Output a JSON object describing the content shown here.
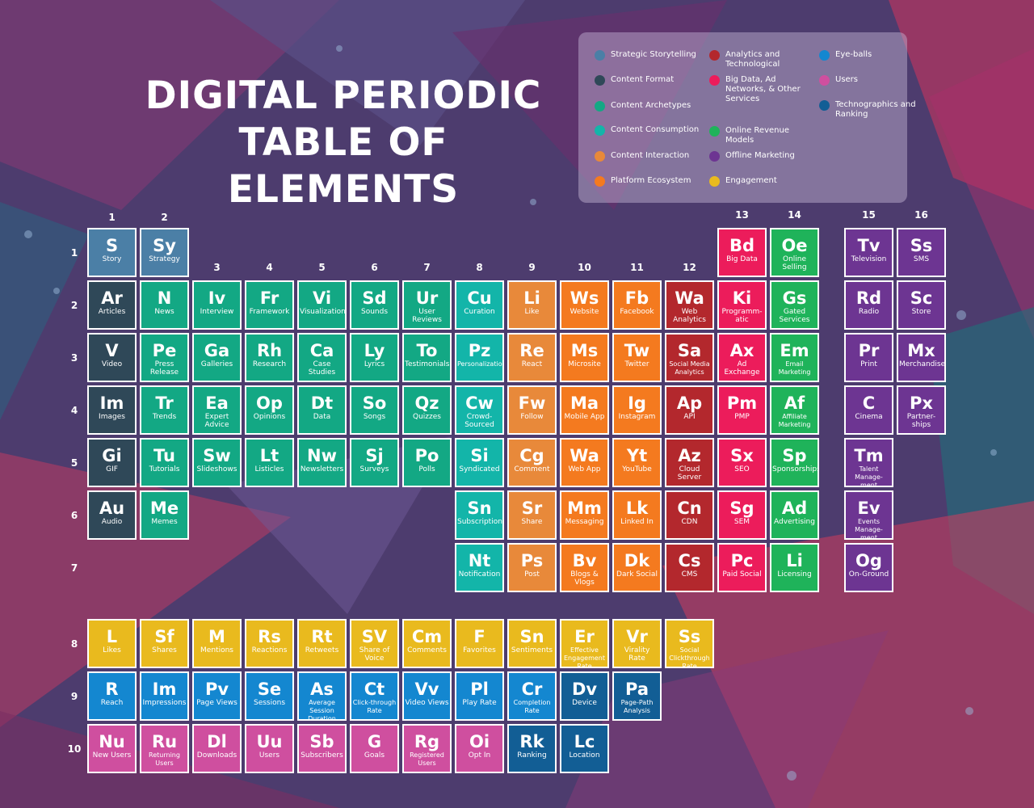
{
  "title": [
    "DIGITAL PERIODIC",
    "TABLE OF ELEMENTS"
  ],
  "colors": {
    "strategic": "#4b7fa6",
    "format": "#2f4858",
    "archetypes": "#13a884",
    "consumption": "#13b5a9",
    "interaction": "#e8893a",
    "platform": "#f47a1f",
    "analytics": "#b3282d",
    "bigdata": "#ec1c5b",
    "revenue": "#1fb35a",
    "offline": "#6d3592",
    "engagement": "#e9ba1e",
    "eyeballs": "#1487d0",
    "users": "#cf4f9f",
    "technographics": "#125e95"
  },
  "legend": [
    {
      "key": "strategic",
      "label": "Strategic Storytelling"
    },
    {
      "key": "format",
      "label": "Content Format"
    },
    {
      "key": "archetypes",
      "label": "Content Archetypes"
    },
    {
      "key": "consumption",
      "label": "Content Consumption"
    },
    {
      "key": "interaction",
      "label": "Content Interaction"
    },
    {
      "key": "platform",
      "label": "Platform Ecosystem"
    },
    {
      "key": "analytics",
      "label": "Analytics and Technological"
    },
    {
      "key": "bigdata",
      "label": "Big Data, Ad Networks, & Other Services"
    },
    {
      "key": "revenue",
      "label": "Online Revenue Models"
    },
    {
      "key": "offline",
      "label": "Offline Marketing"
    },
    {
      "key": "engagement",
      "label": "Engagement"
    },
    {
      "key": "eyeballs",
      "label": "Eye-balls"
    },
    {
      "key": "users",
      "label": "Users"
    },
    {
      "key": "technographics",
      "label": "Technographics and Ranking"
    }
  ],
  "column_labels": [
    "1",
    "2",
    "3",
    "4",
    "5",
    "6",
    "7",
    "8",
    "9",
    "10",
    "11",
    "12",
    "13",
    "14",
    "15",
    "16"
  ],
  "row_labels": [
    "1",
    "2",
    "3",
    "4",
    "5",
    "6",
    "7",
    "8",
    "9",
    "10"
  ],
  "elements": [
    {
      "col": 1,
      "row": 1,
      "sym": "S",
      "name": "Story",
      "cat": "strategic"
    },
    {
      "col": 2,
      "row": 1,
      "sym": "Sy",
      "name": "Strategy",
      "cat": "strategic"
    },
    {
      "col": 13,
      "row": 1,
      "sym": "Bd",
      "name": "Big Data",
      "cat": "bigdata"
    },
    {
      "col": 14,
      "row": 1,
      "sym": "Oe",
      "name": "Online Selling",
      "cat": "revenue"
    },
    {
      "col": 15,
      "row": 1,
      "sym": "Tv",
      "name": "Television",
      "cat": "offline"
    },
    {
      "col": 16,
      "row": 1,
      "sym": "Ss",
      "name": "SMS",
      "cat": "offline"
    },
    {
      "col": 1,
      "row": 2,
      "sym": "Ar",
      "name": "Articles",
      "cat": "format"
    },
    {
      "col": 2,
      "row": 2,
      "sym": "N",
      "name": "News",
      "cat": "archetypes"
    },
    {
      "col": 3,
      "row": 2,
      "sym": "Iv",
      "name": "Interview",
      "cat": "archetypes"
    },
    {
      "col": 4,
      "row": 2,
      "sym": "Fr",
      "name": "Framework",
      "cat": "archetypes"
    },
    {
      "col": 5,
      "row": 2,
      "sym": "Vi",
      "name": "Visualization",
      "cat": "archetypes"
    },
    {
      "col": 6,
      "row": 2,
      "sym": "Sd",
      "name": "Sounds",
      "cat": "archetypes"
    },
    {
      "col": 7,
      "row": 2,
      "sym": "Ur",
      "name": "User Reviews",
      "cat": "archetypes"
    },
    {
      "col": 8,
      "row": 2,
      "sym": "Cu",
      "name": "Curation",
      "cat": "consumption"
    },
    {
      "col": 9,
      "row": 2,
      "sym": "Li",
      "name": "Like",
      "cat": "interaction"
    },
    {
      "col": 10,
      "row": 2,
      "sym": "Ws",
      "name": "Website",
      "cat": "platform"
    },
    {
      "col": 11,
      "row": 2,
      "sym": "Fb",
      "name": "Facebook",
      "cat": "platform"
    },
    {
      "col": 12,
      "row": 2,
      "sym": "Wa",
      "name": "Web Analytics",
      "cat": "analytics"
    },
    {
      "col": 13,
      "row": 2,
      "sym": "Ki",
      "name": "Programm-atic",
      "cat": "bigdata"
    },
    {
      "col": 14,
      "row": 2,
      "sym": "Gs",
      "name": "Gated Services",
      "cat": "revenue"
    },
    {
      "col": 15,
      "row": 2,
      "sym": "Rd",
      "name": "Radio",
      "cat": "offline"
    },
    {
      "col": 16,
      "row": 2,
      "sym": "Sc",
      "name": "Store",
      "cat": "offline"
    },
    {
      "col": 1,
      "row": 3,
      "sym": "V",
      "name": "Video",
      "cat": "format"
    },
    {
      "col": 2,
      "row": 3,
      "sym": "Pe",
      "name": "Press Release",
      "cat": "archetypes"
    },
    {
      "col": 3,
      "row": 3,
      "sym": "Ga",
      "name": "Galleries",
      "cat": "archetypes"
    },
    {
      "col": 4,
      "row": 3,
      "sym": "Rh",
      "name": "Research",
      "cat": "archetypes"
    },
    {
      "col": 5,
      "row": 3,
      "sym": "Ca",
      "name": "Case Studies",
      "cat": "archetypes"
    },
    {
      "col": 6,
      "row": 3,
      "sym": "Ly",
      "name": "Lyrics",
      "cat": "archetypes"
    },
    {
      "col": 7,
      "row": 3,
      "sym": "To",
      "name": "Testimonials",
      "cat": "archetypes"
    },
    {
      "col": 8,
      "row": 3,
      "sym": "Pz",
      "name": "Personalization",
      "cat": "consumption"
    },
    {
      "col": 9,
      "row": 3,
      "sym": "Re",
      "name": "React",
      "cat": "interaction"
    },
    {
      "col": 10,
      "row": 3,
      "sym": "Ms",
      "name": "Microsite",
      "cat": "platform"
    },
    {
      "col": 11,
      "row": 3,
      "sym": "Tw",
      "name": "Twitter",
      "cat": "platform"
    },
    {
      "col": 12,
      "row": 3,
      "sym": "Sa",
      "name": "Social Media Analytics",
      "cat": "analytics"
    },
    {
      "col": 13,
      "row": 3,
      "sym": "Ax",
      "name": "Ad Exchange",
      "cat": "bigdata"
    },
    {
      "col": 14,
      "row": 3,
      "sym": "Em",
      "name": "Email Marketing",
      "cat": "revenue"
    },
    {
      "col": 15,
      "row": 3,
      "sym": "Pr",
      "name": "Print",
      "cat": "offline"
    },
    {
      "col": 16,
      "row": 3,
      "sym": "Mx",
      "name": "Merchandise",
      "cat": "offline"
    },
    {
      "col": 1,
      "row": 4,
      "sym": "Im",
      "name": "Images",
      "cat": "format"
    },
    {
      "col": 2,
      "row": 4,
      "sym": "Tr",
      "name": "Trends",
      "cat": "archetypes"
    },
    {
      "col": 3,
      "row": 4,
      "sym": "Ea",
      "name": "Expert Advice",
      "cat": "archetypes"
    },
    {
      "col": 4,
      "row": 4,
      "sym": "Op",
      "name": "Opinions",
      "cat": "archetypes"
    },
    {
      "col": 5,
      "row": 4,
      "sym": "Dt",
      "name": "Data",
      "cat": "archetypes"
    },
    {
      "col": 6,
      "row": 4,
      "sym": "So",
      "name": "Songs",
      "cat": "archetypes"
    },
    {
      "col": 7,
      "row": 4,
      "sym": "Qz",
      "name": "Quizzes",
      "cat": "archetypes"
    },
    {
      "col": 8,
      "row": 4,
      "sym": "Cw",
      "name": "Crowd-Sourced",
      "cat": "consumption"
    },
    {
      "col": 9,
      "row": 4,
      "sym": "Fw",
      "name": "Follow",
      "cat": "interaction"
    },
    {
      "col": 10,
      "row": 4,
      "sym": "Ma",
      "name": "Mobile App",
      "cat": "platform"
    },
    {
      "col": 11,
      "row": 4,
      "sym": "Ig",
      "name": "Instagram",
      "cat": "platform"
    },
    {
      "col": 12,
      "row": 4,
      "sym": "Ap",
      "name": "API",
      "cat": "analytics"
    },
    {
      "col": 13,
      "row": 4,
      "sym": "Pm",
      "name": "PMP",
      "cat": "bigdata"
    },
    {
      "col": 14,
      "row": 4,
      "sym": "Af",
      "name": "Affiliate Marketing",
      "cat": "revenue"
    },
    {
      "col": 15,
      "row": 4,
      "sym": "C",
      "name": "Cinema",
      "cat": "offline"
    },
    {
      "col": 16,
      "row": 4,
      "sym": "Px",
      "name": "Partner-ships",
      "cat": "offline"
    },
    {
      "col": 1,
      "row": 5,
      "sym": "Gi",
      "name": "GIF",
      "cat": "format"
    },
    {
      "col": 2,
      "row": 5,
      "sym": "Tu",
      "name": "Tutorials",
      "cat": "archetypes"
    },
    {
      "col": 3,
      "row": 5,
      "sym": "Sw",
      "name": "Slideshows",
      "cat": "archetypes"
    },
    {
      "col": 4,
      "row": 5,
      "sym": "Lt",
      "name": "Listicles",
      "cat": "archetypes"
    },
    {
      "col": 5,
      "row": 5,
      "sym": "Nw",
      "name": "Newsletters",
      "cat": "archetypes"
    },
    {
      "col": 6,
      "row": 5,
      "sym": "Sj",
      "name": "Surveys",
      "cat": "archetypes"
    },
    {
      "col": 7,
      "row": 5,
      "sym": "Po",
      "name": "Polls",
      "cat": "archetypes"
    },
    {
      "col": 8,
      "row": 5,
      "sym": "Si",
      "name": "Syndicated",
      "cat": "consumption"
    },
    {
      "col": 9,
      "row": 5,
      "sym": "Cg",
      "name": "Comment",
      "cat": "interaction"
    },
    {
      "col": 10,
      "row": 5,
      "sym": "Wa",
      "name": "Web App",
      "cat": "platform"
    },
    {
      "col": 11,
      "row": 5,
      "sym": "Yt",
      "name": "YouTube",
      "cat": "platform"
    },
    {
      "col": 12,
      "row": 5,
      "sym": "Az",
      "name": "Cloud Server",
      "cat": "analytics"
    },
    {
      "col": 13,
      "row": 5,
      "sym": "Sx",
      "name": "SEO",
      "cat": "bigdata"
    },
    {
      "col": 14,
      "row": 5,
      "sym": "Sp",
      "name": "Sponsorships",
      "cat": "revenue"
    },
    {
      "col": 15,
      "row": 5,
      "sym": "Tm",
      "name": "Talent Manage-ment",
      "cat": "offline"
    },
    {
      "col": 1,
      "row": 6,
      "sym": "Au",
      "name": "Audio",
      "cat": "format"
    },
    {
      "col": 2,
      "row": 6,
      "sym": "Me",
      "name": "Memes",
      "cat": "archetypes"
    },
    {
      "col": 8,
      "row": 6,
      "sym": "Sn",
      "name": "Subscription",
      "cat": "consumption"
    },
    {
      "col": 9,
      "row": 6,
      "sym": "Sr",
      "name": "Share",
      "cat": "interaction"
    },
    {
      "col": 10,
      "row": 6,
      "sym": "Mm",
      "name": "Messaging",
      "cat": "platform"
    },
    {
      "col": 11,
      "row": 6,
      "sym": "Lk",
      "name": "Linked In",
      "cat": "platform"
    },
    {
      "col": 12,
      "row": 6,
      "sym": "Cn",
      "name": "CDN",
      "cat": "analytics"
    },
    {
      "col": 13,
      "row": 6,
      "sym": "Sg",
      "name": "SEM",
      "cat": "bigdata"
    },
    {
      "col": 14,
      "row": 6,
      "sym": "Ad",
      "name": "Advertising",
      "cat": "revenue"
    },
    {
      "col": 15,
      "row": 6,
      "sym": "Ev",
      "name": "Events Manage-ment",
      "cat": "offline"
    },
    {
      "col": 8,
      "row": 7,
      "sym": "Nt",
      "name": "Notification",
      "cat": "consumption"
    },
    {
      "col": 9,
      "row": 7,
      "sym": "Ps",
      "name": "Post",
      "cat": "interaction"
    },
    {
      "col": 10,
      "row": 7,
      "sym": "Bv",
      "name": "Blogs & Vlogs",
      "cat": "platform"
    },
    {
      "col": 11,
      "row": 7,
      "sym": "Dk",
      "name": "Dark Social",
      "cat": "platform"
    },
    {
      "col": 12,
      "row": 7,
      "sym": "Cs",
      "name": "CMS",
      "cat": "analytics"
    },
    {
      "col": 13,
      "row": 7,
      "sym": "Pc",
      "name": "Paid Social",
      "cat": "bigdata"
    },
    {
      "col": 14,
      "row": 7,
      "sym": "Li",
      "name": "Licensing",
      "cat": "revenue"
    },
    {
      "col": 15,
      "row": 7,
      "sym": "Og",
      "name": "On-Ground",
      "cat": "offline"
    },
    {
      "col": 1,
      "row": 8,
      "sym": "L",
      "name": "Likes",
      "cat": "engagement"
    },
    {
      "col": 2,
      "row": 8,
      "sym": "Sf",
      "name": "Shares",
      "cat": "engagement"
    },
    {
      "col": 3,
      "row": 8,
      "sym": "M",
      "name": "Mentions",
      "cat": "engagement"
    },
    {
      "col": 4,
      "row": 8,
      "sym": "Rs",
      "name": "Reactions",
      "cat": "engagement"
    },
    {
      "col": 5,
      "row": 8,
      "sym": "Rt",
      "name": "Retweets",
      "cat": "engagement"
    },
    {
      "col": 6,
      "row": 8,
      "sym": "SV",
      "name": "Share of Voice",
      "cat": "engagement"
    },
    {
      "col": 7,
      "row": 8,
      "sym": "Cm",
      "name": "Comments",
      "cat": "engagement"
    },
    {
      "col": 8,
      "row": 8,
      "sym": "F",
      "name": "Favorites",
      "cat": "engagement"
    },
    {
      "col": 9,
      "row": 8,
      "sym": "Sn",
      "name": "Sentiments",
      "cat": "engagement"
    },
    {
      "col": 10,
      "row": 8,
      "sym": "Er",
      "name": "Effective Engagement Rate",
      "cat": "engagement"
    },
    {
      "col": 11,
      "row": 8,
      "sym": "Vr",
      "name": "Virality Rate",
      "cat": "engagement"
    },
    {
      "col": 12,
      "row": 8,
      "sym": "Ss",
      "name": "Social Clickthrough Rate",
      "cat": "engagement"
    },
    {
      "col": 1,
      "row": 9,
      "sym": "R",
      "name": "Reach",
      "cat": "eyeballs"
    },
    {
      "col": 2,
      "row": 9,
      "sym": "Im",
      "name": "Impressions",
      "cat": "eyeballs"
    },
    {
      "col": 3,
      "row": 9,
      "sym": "Pv",
      "name": "Page Views",
      "cat": "eyeballs"
    },
    {
      "col": 4,
      "row": 9,
      "sym": "Se",
      "name": "Sessions",
      "cat": "eyeballs"
    },
    {
      "col": 5,
      "row": 9,
      "sym": "As",
      "name": "Average Session Duration",
      "cat": "eyeballs"
    },
    {
      "col": 6,
      "row": 9,
      "sym": "Ct",
      "name": "Click-through Rate",
      "cat": "eyeballs"
    },
    {
      "col": 7,
      "row": 9,
      "sym": "Vv",
      "name": "Video Views",
      "cat": "eyeballs"
    },
    {
      "col": 8,
      "row": 9,
      "sym": "Pl",
      "name": "Play Rate",
      "cat": "eyeballs"
    },
    {
      "col": 9,
      "row": 9,
      "sym": "Cr",
      "name": "Completion Rate",
      "cat": "eyeballs"
    },
    {
      "col": 10,
      "row": 9,
      "sym": "Dv",
      "name": "Device",
      "cat": "technographics"
    },
    {
      "col": 11,
      "row": 9,
      "sym": "Pa",
      "name": "Page-Path Analysis",
      "cat": "technographics"
    },
    {
      "col": 1,
      "row": 10,
      "sym": "Nu",
      "name": "New Users",
      "cat": "users"
    },
    {
      "col": 2,
      "row": 10,
      "sym": "Ru",
      "name": "Returning Users",
      "cat": "users"
    },
    {
      "col": 3,
      "row": 10,
      "sym": "Dl",
      "name": "Downloads",
      "cat": "users"
    },
    {
      "col": 4,
      "row": 10,
      "sym": "Uu",
      "name": "Users",
      "cat": "users"
    },
    {
      "col": 5,
      "row": 10,
      "sym": "Sb",
      "name": "Subscribers",
      "cat": "users"
    },
    {
      "col": 6,
      "row": 10,
      "sym": "G",
      "name": "Goals",
      "cat": "users"
    },
    {
      "col": 7,
      "row": 10,
      "sym": "Rg",
      "name": "Registered Users",
      "cat": "users"
    },
    {
      "col": 8,
      "row": 10,
      "sym": "Oi",
      "name": "Opt In",
      "cat": "users"
    },
    {
      "col": 9,
      "row": 10,
      "sym": "Rk",
      "name": "Ranking",
      "cat": "technographics"
    },
    {
      "col": 10,
      "row": 10,
      "sym": "Lc",
      "name": "Location",
      "cat": "technographics"
    }
  ]
}
